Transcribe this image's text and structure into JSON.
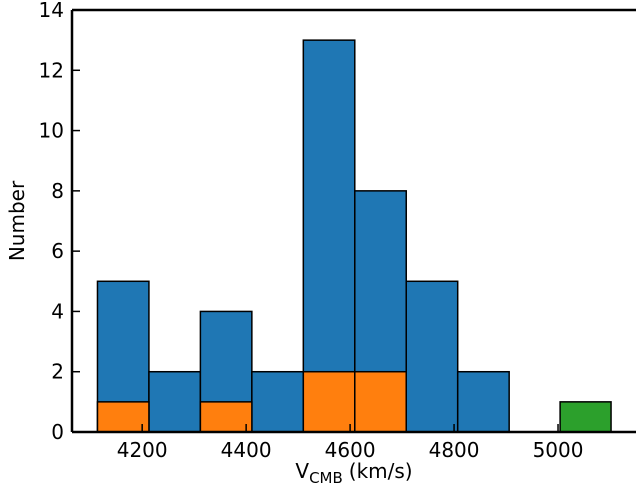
{
  "chart_data": {
    "type": "histogram",
    "xlabel": {
      "text": "V",
      "subscript": "CMB",
      "suffix": "(km/s)"
    },
    "ylabel": "Number",
    "series": [
      {
        "color": "#1f77b4",
        "bins": [
          4114,
          4213,
          4312,
          4411,
          4510,
          4609,
          4708,
          4807,
          4906
        ],
        "values": [
          5,
          2,
          4,
          2,
          13,
          8,
          5,
          2
        ]
      },
      {
        "color": "#ff7f0e",
        "bins": [
          4114,
          4213,
          4312,
          4411,
          4510,
          4609,
          4708,
          4807,
          4906
        ],
        "values": [
          1,
          0,
          1,
          0,
          2,
          2,
          0,
          0
        ]
      },
      {
        "color": "#2ca02c",
        "bins": [
          5004,
          5102
        ],
        "values": [
          1
        ]
      }
    ],
    "xlim": [
      4065,
      5150
    ],
    "ylim": [
      0,
      14
    ],
    "xticks": [
      4200,
      4400,
      4600,
      4800,
      5000
    ],
    "yticks": [
      0,
      2,
      4,
      6,
      8,
      10,
      12,
      14
    ]
  }
}
